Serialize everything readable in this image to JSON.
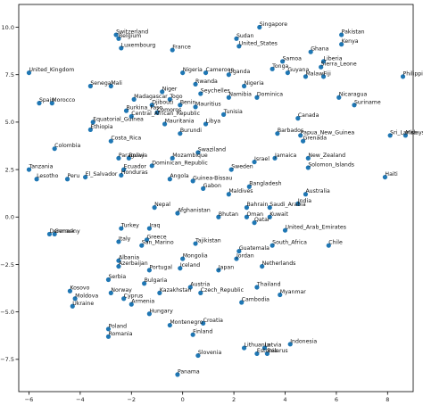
{
  "chart_data": {
    "type": "scatter",
    "title": "",
    "xlabel": "",
    "ylabel": "",
    "xlim": [
      -6.4,
      9.0
    ],
    "ylim": [
      -9.2,
      11.2
    ],
    "xticks": [
      -6,
      -4,
      -2,
      0,
      2,
      4,
      6,
      8
    ],
    "yticks": [
      -7.5,
      -5.0,
      -2.5,
      0.0,
      2.5,
      5.0,
      7.5,
      10.0
    ],
    "xtick_labels": [
      "−6",
      "−4",
      "−2",
      "0",
      "2",
      "4",
      "6",
      "8"
    ],
    "ytick_labels": [
      "−7.5",
      "−5.0",
      "−2.5",
      "0.0",
      "2.5",
      "5.0",
      "7.5",
      "10.0"
    ],
    "grid": false,
    "marker_color": "#1f77b4",
    "points": [
      {
        "label": "Switzerland",
        "x": -2.6,
        "y": 9.6
      },
      {
        "label": "Belgium",
        "x": -2.5,
        "y": 9.4
      },
      {
        "label": "Luxembourg",
        "x": -2.4,
        "y": 8.9
      },
      {
        "label": "France",
        "x": -0.4,
        "y": 8.8
      },
      {
        "label": "Singapore",
        "x": 3.0,
        "y": 10.0
      },
      {
        "label": "Sudan",
        "x": 2.1,
        "y": 9.4
      },
      {
        "label": "United_States",
        "x": 2.2,
        "y": 9.0
      },
      {
        "label": "Pakistan",
        "x": 6.2,
        "y": 9.6
      },
      {
        "label": "Kenya",
        "x": 6.2,
        "y": 9.1
      },
      {
        "label": "Ghana",
        "x": 5.0,
        "y": 8.7
      },
      {
        "label": "Samoa",
        "x": 3.9,
        "y": 8.2
      },
      {
        "label": "Liberia",
        "x": 5.5,
        "y": 8.2
      },
      {
        "label": "Tonga",
        "x": 3.5,
        "y": 7.8
      },
      {
        "label": "Guyana",
        "x": 4.1,
        "y": 7.6
      },
      {
        "label": "Sierra_Leone",
        "x": 5.4,
        "y": 7.9
      },
      {
        "label": "Malawi",
        "x": 4.8,
        "y": 7.4
      },
      {
        "label": "Fiji",
        "x": 5.5,
        "y": 7.4
      },
      {
        "label": "Philippines",
        "x": 8.6,
        "y": 7.4
      },
      {
        "label": "United_Kingdom",
        "x": -6.0,
        "y": 7.6
      },
      {
        "label": "Nigeria",
        "x": 0.0,
        "y": 7.6
      },
      {
        "label": "Cameroon",
        "x": 0.9,
        "y": 7.6
      },
      {
        "label": "Rwanda",
        "x": 0.5,
        "y": 7.0
      },
      {
        "label": "Uganda",
        "x": 1.8,
        "y": 7.5
      },
      {
        "label": "Senegal",
        "x": -3.6,
        "y": 6.9
      },
      {
        "label": "Mali",
        "x": -2.8,
        "y": 6.9
      },
      {
        "label": "Niger",
        "x": -0.8,
        "y": 6.6
      },
      {
        "label": "Seychelles",
        "x": 0.7,
        "y": 6.5
      },
      {
        "label": "Nigeria",
        "x": 2.4,
        "y": 6.9
      },
      {
        "label": "Namibia",
        "x": 1.8,
        "y": 6.3
      },
      {
        "label": "Dominica",
        "x": 2.9,
        "y": 6.3
      },
      {
        "label": "Madagascar",
        "x": -1.9,
        "y": 6.2
      },
      {
        "label": "Togo",
        "x": -0.5,
        "y": 6.2
      },
      {
        "label": "Mauritius",
        "x": 0.5,
        "y": 5.8
      },
      {
        "label": "Spain",
        "x": -5.6,
        "y": 6.0
      },
      {
        "label": "Morocco",
        "x": -5.1,
        "y": 6.0
      },
      {
        "label": "Djibouti",
        "x": -1.2,
        "y": 5.9
      },
      {
        "label": "Benin",
        "x": -0.1,
        "y": 5.9
      },
      {
        "label": "Burkina_Faso",
        "x": -2.2,
        "y": 5.6
      },
      {
        "label": "Comoros",
        "x": -1.0,
        "y": 5.5
      },
      {
        "label": "Central_African_Republic",
        "x": -2.0,
        "y": 5.3
      },
      {
        "label": "Tunisia",
        "x": 1.6,
        "y": 5.4
      },
      {
        "label": "Nicaragua",
        "x": 6.1,
        "y": 6.3
      },
      {
        "label": "Suriname",
        "x": 6.7,
        "y": 5.9
      },
      {
        "label": "Equatorial_Guinea",
        "x": -3.5,
        "y": 5.0
      },
      {
        "label": "Ethiopia",
        "x": -3.6,
        "y": 4.6
      },
      {
        "label": "Mauritania",
        "x": -0.7,
        "y": 4.9
      },
      {
        "label": "Libya",
        "x": 0.9,
        "y": 4.9
      },
      {
        "label": "Burundi",
        "x": -0.1,
        "y": 4.4
      },
      {
        "label": "Canada",
        "x": 4.5,
        "y": 5.2
      },
      {
        "label": "Barbados",
        "x": 3.7,
        "y": 4.4
      },
      {
        "label": "Papua_New_Guinea",
        "x": 4.6,
        "y": 4.3
      },
      {
        "label": "Grenada",
        "x": 4.7,
        "y": 4.0
      },
      {
        "label": "Sri_Lanka",
        "x": 8.1,
        "y": 4.3
      },
      {
        "label": "Malaysia",
        "x": 8.7,
        "y": 4.3
      },
      {
        "label": "Costa_Rica",
        "x": -2.8,
        "y": 4.0
      },
      {
        "label": "Colombia",
        "x": -5.0,
        "y": 3.6
      },
      {
        "label": "Paraguay",
        "x": -2.5,
        "y": 3.1
      },
      {
        "label": "Bolivia",
        "x": -2.1,
        "y": 3.1
      },
      {
        "label": "Mozambique",
        "x": -0.4,
        "y": 3.1
      },
      {
        "label": "Swaziland",
        "x": 0.6,
        "y": 3.4
      },
      {
        "label": "Dominican_Republic",
        "x": -1.2,
        "y": 2.7
      },
      {
        "label": "Jamaica",
        "x": 3.6,
        "y": 3.1
      },
      {
        "label": "New_Zealand",
        "x": 4.9,
        "y": 3.1
      },
      {
        "label": "Israel",
        "x": 2.8,
        "y": 2.9
      },
      {
        "label": "Solomon_Islands",
        "x": 4.9,
        "y": 2.6
      },
      {
        "label": "Tanzania",
        "x": -6.0,
        "y": 2.5
      },
      {
        "label": "Ecuador",
        "x": -2.3,
        "y": 2.5
      },
      {
        "label": "Lesotho",
        "x": -5.7,
        "y": 2.0
      },
      {
        "label": "Peru",
        "x": -4.5,
        "y": 2.0
      },
      {
        "label": "El_Salvador",
        "x": -3.8,
        "y": 2.1
      },
      {
        "label": "Honduras",
        "x": -2.4,
        "y": 2.2
      },
      {
        "label": "Angola",
        "x": -0.5,
        "y": 2.0
      },
      {
        "label": "Guinea-Bissau",
        "x": 0.4,
        "y": 1.9
      },
      {
        "label": "Gabon",
        "x": 0.8,
        "y": 1.5
      },
      {
        "label": "Sweden",
        "x": 1.9,
        "y": 2.5
      },
      {
        "label": "Bangladesh",
        "x": 2.6,
        "y": 1.6
      },
      {
        "label": "Haiti",
        "x": 7.9,
        "y": 2.1
      },
      {
        "label": "Maldives",
        "x": 1.8,
        "y": 1.2
      },
      {
        "label": "Australia",
        "x": 4.8,
        "y": 1.2
      },
      {
        "label": "India",
        "x": 4.5,
        "y": 0.7
      },
      {
        "label": "Nepal",
        "x": -1.1,
        "y": 0.5
      },
      {
        "label": "Afghanistan",
        "x": -0.2,
        "y": 0.2
      },
      {
        "label": "Bahrain",
        "x": 2.5,
        "y": 0.5
      },
      {
        "label": "Saudi_Arabia",
        "x": 3.4,
        "y": 0.5
      },
      {
        "label": "Bhutan",
        "x": 1.4,
        "y": 0.0
      },
      {
        "label": "Oman",
        "x": 2.5,
        "y": 0.0
      },
      {
        "label": "Kuwait",
        "x": 3.4,
        "y": 0.0
      },
      {
        "label": "Qatar",
        "x": 2.8,
        "y": -0.3
      },
      {
        "label": "Denmark",
        "x": -5.2,
        "y": -0.9
      },
      {
        "label": "Germany",
        "x": -5.0,
        "y": -0.9
      },
      {
        "label": "Turkey",
        "x": -2.4,
        "y": -0.6
      },
      {
        "label": "Iraq",
        "x": -1.3,
        "y": -0.6
      },
      {
        "label": "United_Arab_Emirates",
        "x": 4.0,
        "y": -0.7
      },
      {
        "label": "Italy",
        "x": -2.5,
        "y": -1.3
      },
      {
        "label": "Greece",
        "x": -1.4,
        "y": -1.2
      },
      {
        "label": "San_Marino",
        "x": -1.6,
        "y": -1.5
      },
      {
        "label": "Tajikistan",
        "x": 0.5,
        "y": -1.4
      },
      {
        "label": "South_Africa",
        "x": 3.5,
        "y": -1.5
      },
      {
        "label": "Chile",
        "x": 5.7,
        "y": -1.5
      },
      {
        "label": "Guatemala",
        "x": 2.2,
        "y": -1.8
      },
      {
        "label": "Jordan",
        "x": 2.1,
        "y": -2.2
      },
      {
        "label": "Albania",
        "x": -2.5,
        "y": -2.3
      },
      {
        "label": "Azerbaijan",
        "x": -2.5,
        "y": -2.6
      },
      {
        "label": "Mongolia",
        "x": 0.0,
        "y": -2.2
      },
      {
        "label": "Iceland",
        "x": -0.1,
        "y": -2.7
      },
      {
        "label": "Japan",
        "x": 1.4,
        "y": -2.8
      },
      {
        "label": "Netherlands",
        "x": 3.1,
        "y": -2.6
      },
      {
        "label": "Portugal",
        "x": -1.3,
        "y": -2.8
      },
      {
        "label": "Serbia",
        "x": -2.9,
        "y": -3.3
      },
      {
        "label": "Bulgaria",
        "x": -1.5,
        "y": -3.5
      },
      {
        "label": "Thailand",
        "x": 2.9,
        "y": -3.7
      },
      {
        "label": "Austria",
        "x": 0.3,
        "y": -3.7
      },
      {
        "label": "Kosovo",
        "x": -4.4,
        "y": -3.9
      },
      {
        "label": "Norway",
        "x": -2.8,
        "y": -4.0
      },
      {
        "label": "Kazakhstan",
        "x": -0.9,
        "y": -4.0
      },
      {
        "label": "Czech_Republic",
        "x": 0.7,
        "y": -4.0
      },
      {
        "label": "Myanmar",
        "x": 3.8,
        "y": -4.1
      },
      {
        "label": "Moldova",
        "x": -4.2,
        "y": -4.3
      },
      {
        "label": "Cyprus",
        "x": -2.3,
        "y": -4.3
      },
      {
        "label": "Armenia",
        "x": -2.0,
        "y": -4.6
      },
      {
        "label": "Cambodia",
        "x": 2.3,
        "y": -4.5
      },
      {
        "label": "Ukraine",
        "x": -4.3,
        "y": -4.7
      },
      {
        "label": "Hungary",
        "x": -1.3,
        "y": -5.1
      },
      {
        "label": "Croatia",
        "x": 0.8,
        "y": -5.6
      },
      {
        "label": "Montenegro",
        "x": -0.5,
        "y": -5.7
      },
      {
        "label": "Poland",
        "x": -2.9,
        "y": -5.9
      },
      {
        "label": "Finland",
        "x": 0.4,
        "y": -6.2
      },
      {
        "label": "Romania",
        "x": -2.9,
        "y": -6.3
      },
      {
        "label": "Indonesia",
        "x": 4.2,
        "y": -6.7
      },
      {
        "label": "Lithuania",
        "x": 2.4,
        "y": -6.9
      },
      {
        "label": "Latvia",
        "x": 3.2,
        "y": -6.9
      },
      {
        "label": "Estonia",
        "x": 2.9,
        "y": -7.2
      },
      {
        "label": "Belarus",
        "x": 3.3,
        "y": -7.2
      },
      {
        "label": "Slovenia",
        "x": 0.6,
        "y": -7.3
      },
      {
        "label": "Panama",
        "x": -0.2,
        "y": -8.3
      }
    ]
  }
}
